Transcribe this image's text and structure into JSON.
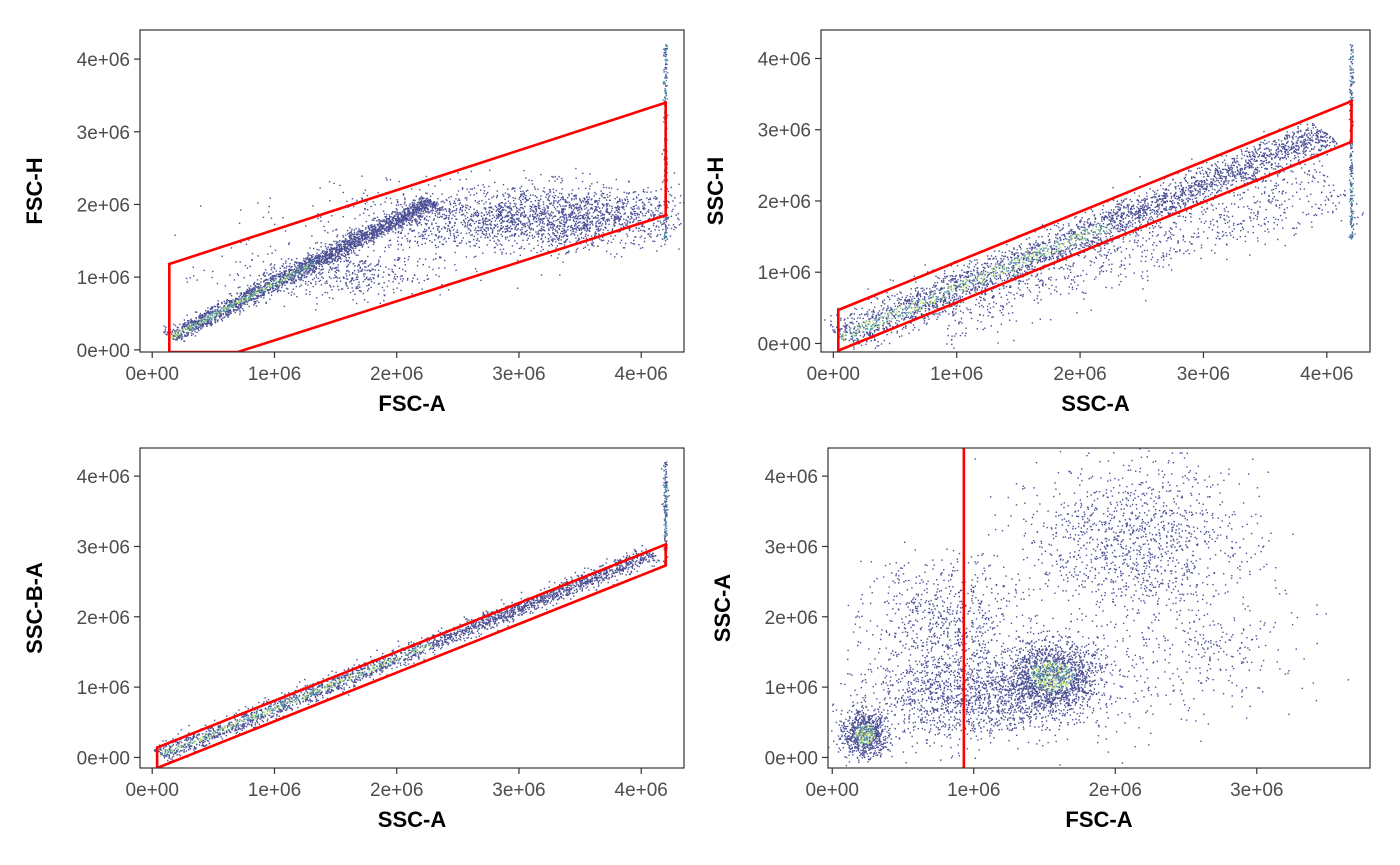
{
  "colors": {
    "gate": "#ff0000",
    "panel_border": "#333333",
    "axis_text": "#4d4d4d",
    "density_low": "#4b4f94",
    "density_mid": "#4a8fa6",
    "density_high": "#c6e27a"
  },
  "chart_data": [
    {
      "type": "scatter",
      "xlabel": "FSC-A",
      "ylabel": "FSC-H",
      "xlim": [
        -100000,
        4350000
      ],
      "ylim": [
        -30000,
        4400000
      ],
      "x_ticks": [
        0,
        1000000,
        2000000,
        3000000,
        4000000
      ],
      "x_tick_labels": [
        "0e+00",
        "1e+06",
        "2e+06",
        "3e+06",
        "4e+06"
      ],
      "y_ticks": [
        0,
        1000000,
        2000000,
        3000000,
        4000000
      ],
      "y_tick_labels": [
        "0e+00",
        "1e+06",
        "2e+06",
        "3e+06",
        "4e+06"
      ],
      "gate": {
        "shape": "polygon",
        "points": [
          [
            140000,
            1180000
          ],
          [
            4200000,
            3400000
          ],
          [
            4200000,
            1850000
          ],
          [
            700000,
            -30000
          ],
          [
            140000,
            -30000
          ]
        ]
      },
      "density_structures": [
        {
          "kind": "streak",
          "from": [
            150000,
            170000
          ],
          "to": [
            2300000,
            2050000
          ],
          "spread": 50000,
          "count": 2600,
          "dense": true
        },
        {
          "kind": "blob",
          "center": [
            2900000,
            1800000
          ],
          "sd": [
            700000,
            230000
          ],
          "count": 1600
        },
        {
          "kind": "blob",
          "center": [
            3600000,
            1850000
          ],
          "sd": [
            380000,
            200000
          ],
          "count": 700
        },
        {
          "kind": "blob",
          "center": [
            1500000,
            1050000
          ],
          "sd": [
            450000,
            170000
          ],
          "count": 500
        },
        {
          "kind": "vline",
          "x": 4200000,
          "y_range": [
            1450000,
            4200000
          ],
          "count": 240
        }
      ]
    },
    {
      "type": "scatter",
      "xlabel": "SSC-A",
      "ylabel": "SSC-H",
      "xlim": [
        -100000,
        4350000
      ],
      "ylim": [
        -120000,
        4400000
      ],
      "x_ticks": [
        0,
        1000000,
        2000000,
        3000000,
        4000000
      ],
      "x_tick_labels": [
        "0e+00",
        "1e+06",
        "2e+06",
        "3e+06",
        "4e+06"
      ],
      "y_ticks": [
        0,
        1000000,
        2000000,
        3000000,
        4000000
      ],
      "y_tick_labels": [
        "0e+00",
        "1e+06",
        "2e+06",
        "3e+06",
        "4e+06"
      ],
      "gate": {
        "shape": "polygon",
        "points": [
          [
            40000,
            470000
          ],
          [
            4200000,
            3400000
          ],
          [
            4200000,
            2830000
          ],
          [
            40000,
            -100000
          ]
        ]
      },
      "density_structures": [
        {
          "kind": "streak",
          "from": [
            50000,
            80000
          ],
          "to": [
            4000000,
            2950000
          ],
          "spread": 110000,
          "count": 3200,
          "dense": true
        },
        {
          "kind": "streak",
          "from": [
            700000,
            350000
          ],
          "to": [
            4100000,
            2250000
          ],
          "spread": 230000,
          "count": 900
        },
        {
          "kind": "vline",
          "x": 4200000,
          "y_range": [
            1450000,
            4200000
          ],
          "count": 240
        }
      ]
    },
    {
      "type": "scatter",
      "xlabel": "SSC-A",
      "ylabel": "SSC-B-A",
      "xlim": [
        -100000,
        4350000
      ],
      "ylim": [
        -150000,
        4400000
      ],
      "x_ticks": [
        0,
        1000000,
        2000000,
        3000000,
        4000000
      ],
      "x_tick_labels": [
        "0e+00",
        "1e+06",
        "2e+06",
        "3e+06",
        "4e+06"
      ],
      "y_ticks": [
        0,
        1000000,
        2000000,
        3000000,
        4000000
      ],
      "y_tick_labels": [
        "0e+00",
        "1e+06",
        "2e+06",
        "3e+06",
        "4e+06"
      ],
      "gate": {
        "shape": "polygon",
        "points": [
          [
            40000,
            140000
          ],
          [
            4200000,
            3030000
          ],
          [
            4200000,
            2730000
          ],
          [
            40000,
            -150000
          ]
        ]
      },
      "density_structures": [
        {
          "kind": "streak",
          "from": [
            60000,
            30000
          ],
          "to": [
            4100000,
            2900000
          ],
          "spread": 55000,
          "count": 2800,
          "dense": true
        },
        {
          "kind": "vline",
          "x": 4200000,
          "y_range": [
            2750000,
            4200000
          ],
          "count": 180
        }
      ]
    },
    {
      "type": "scatter",
      "xlabel": "FSC-A",
      "ylabel": "SSC-A",
      "xlim": [
        -30000,
        3800000
      ],
      "ylim": [
        -150000,
        4400000
      ],
      "x_ticks": [
        0,
        1000000,
        2000000,
        3000000
      ],
      "x_tick_labels": [
        "0e+00",
        "1e+06",
        "2e+06",
        "3e+06"
      ],
      "y_ticks": [
        0,
        1000000,
        2000000,
        3000000,
        4000000
      ],
      "y_tick_labels": [
        "0e+00",
        "1e+06",
        "2e+06",
        "3e+06",
        "4e+06"
      ],
      "gate": {
        "shape": "vline",
        "x": 930000
      },
      "density_structures": [
        {
          "kind": "blob",
          "center": [
            230000,
            330000
          ],
          "sd": [
            80000,
            160000
          ],
          "count": 800,
          "dense": true
        },
        {
          "kind": "blob",
          "center": [
            1550000,
            1150000
          ],
          "sd": [
            170000,
            240000
          ],
          "count": 1500,
          "dense": true
        },
        {
          "kind": "blob",
          "center": [
            1000000,
            850000
          ],
          "sd": [
            420000,
            330000
          ],
          "count": 1500
        },
        {
          "kind": "blob",
          "center": [
            2150000,
            3100000
          ],
          "sd": [
            380000,
            550000
          ],
          "count": 1200
        },
        {
          "kind": "blob",
          "center": [
            800000,
            1900000
          ],
          "sd": [
            280000,
            480000
          ],
          "count": 700
        },
        {
          "kind": "blob",
          "center": [
            2500000,
            1500000
          ],
          "sd": [
            450000,
            500000
          ],
          "count": 350
        }
      ]
    }
  ]
}
